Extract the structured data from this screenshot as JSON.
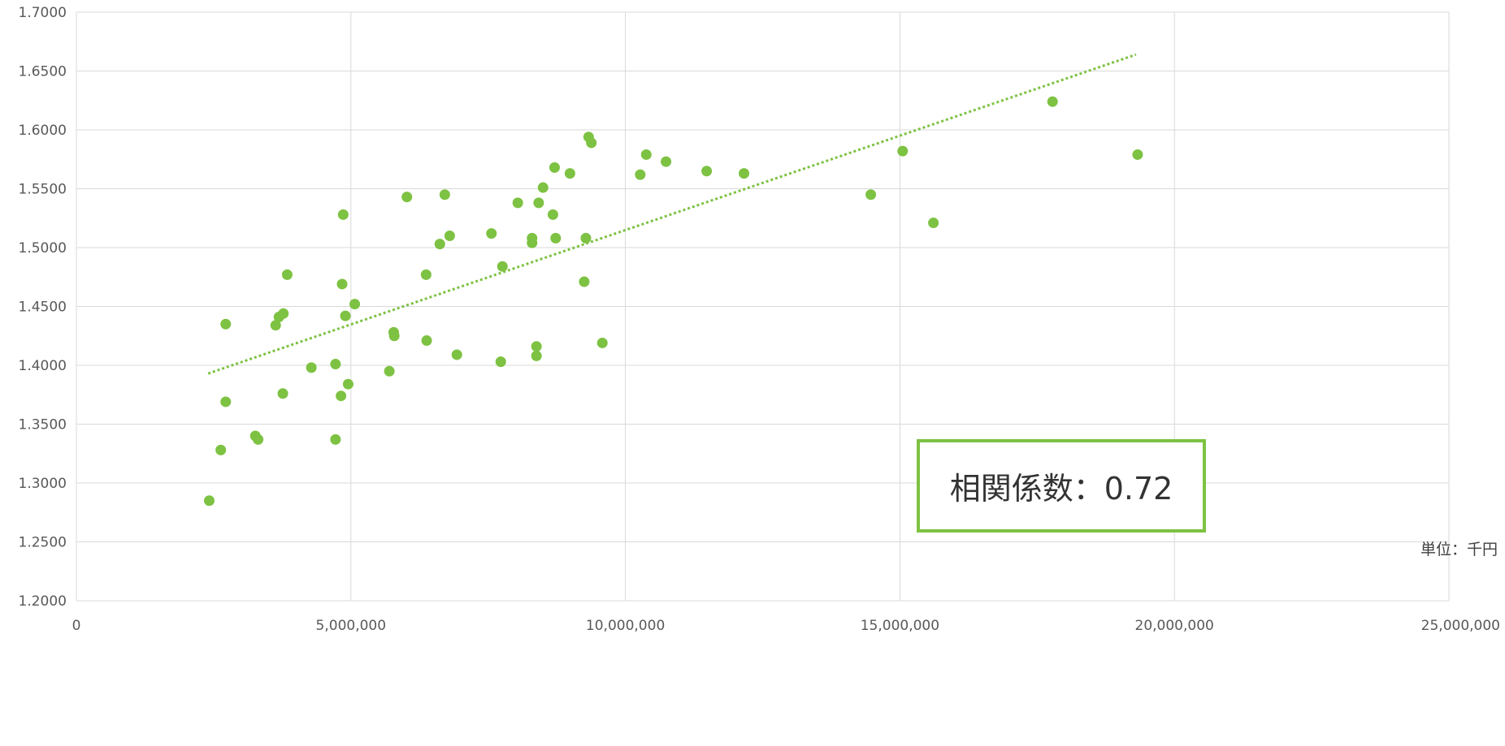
{
  "chart_data": {
    "type": "scatter",
    "title": "",
    "xlabel": "",
    "ylabel": "",
    "xlim": [
      0,
      25000000
    ],
    "ylim": [
      1.2,
      1.7
    ],
    "x_ticks": [
      0,
      5000000,
      10000000,
      15000000,
      20000000,
      25000000
    ],
    "x_tick_labels": [
      "0",
      "5,000,000",
      "10,000,000",
      "15,000,000",
      "20,000,000",
      "25,000,000"
    ],
    "y_ticks": [
      1.2,
      1.25,
      1.3,
      1.35,
      1.4,
      1.45,
      1.5,
      1.55,
      1.6,
      1.65,
      1.7
    ],
    "y_tick_labels": [
      "1.2000",
      "1.2500",
      "1.3000",
      "1.3500",
      "1.4000",
      "1.4500",
      "1.5000",
      "1.5500",
      "1.6000",
      "1.6500",
      "1.7000"
    ],
    "grid": true,
    "colors": {
      "points": "#7dc242",
      "trendline": "#7dc242",
      "grid": "#d9d9d9",
      "box_border": "#7dc242"
    },
    "series": [
      {
        "points": [
          [
            2420000,
            1.285
          ],
          [
            2630000,
            1.328
          ],
          [
            2720000,
            1.369
          ],
          [
            2720000,
            1.435
          ],
          [
            3260000,
            1.34
          ],
          [
            3310000,
            1.337
          ],
          [
            3630000,
            1.434
          ],
          [
            3690000,
            1.441
          ],
          [
            3760000,
            1.376
          ],
          [
            3770000,
            1.444
          ],
          [
            3840000,
            1.477
          ],
          [
            4280000,
            1.398
          ],
          [
            4720000,
            1.401
          ],
          [
            4720000,
            1.337
          ],
          [
            4820000,
            1.374
          ],
          [
            4840000,
            1.469
          ],
          [
            4860000,
            1.528
          ],
          [
            4900000,
            1.442
          ],
          [
            4950000,
            1.384
          ],
          [
            5070000,
            1.452
          ],
          [
            5700000,
            1.395
          ],
          [
            5780000,
            1.428
          ],
          [
            5790000,
            1.425
          ],
          [
            6020000,
            1.543
          ],
          [
            6370000,
            1.477
          ],
          [
            6380000,
            1.421
          ],
          [
            6620000,
            1.503
          ],
          [
            6710000,
            1.545
          ],
          [
            6800000,
            1.51
          ],
          [
            6930000,
            1.409
          ],
          [
            7560000,
            1.512
          ],
          [
            7730000,
            1.403
          ],
          [
            7760000,
            1.484
          ],
          [
            8040000,
            1.538
          ],
          [
            8300000,
            1.508
          ],
          [
            8300000,
            1.504
          ],
          [
            8380000,
            1.416
          ],
          [
            8380000,
            1.408
          ],
          [
            8420000,
            1.538
          ],
          [
            8500000,
            1.551
          ],
          [
            8680000,
            1.528
          ],
          [
            8710000,
            1.568
          ],
          [
            8730000,
            1.508
          ],
          [
            8990000,
            1.563
          ],
          [
            9250000,
            1.471
          ],
          [
            9280000,
            1.508
          ],
          [
            9330000,
            1.594
          ],
          [
            9380000,
            1.589
          ],
          [
            9580000,
            1.419
          ],
          [
            10270000,
            1.562
          ],
          [
            10380000,
            1.579
          ],
          [
            10740000,
            1.573
          ],
          [
            11480000,
            1.565
          ],
          [
            12160000,
            1.563
          ],
          [
            14470000,
            1.545
          ],
          [
            15050000,
            1.582
          ],
          [
            15610000,
            1.521
          ],
          [
            17780000,
            1.624
          ],
          [
            19330000,
            1.579
          ]
        ]
      }
    ],
    "trendline": {
      "style": "dotted",
      "x": [
        2400000,
        19300000
      ],
      "y": [
        1.393,
        1.664
      ]
    }
  },
  "annotation": {
    "correlation_label": "相関係数：0.72",
    "unit_label": "単位：千円"
  }
}
